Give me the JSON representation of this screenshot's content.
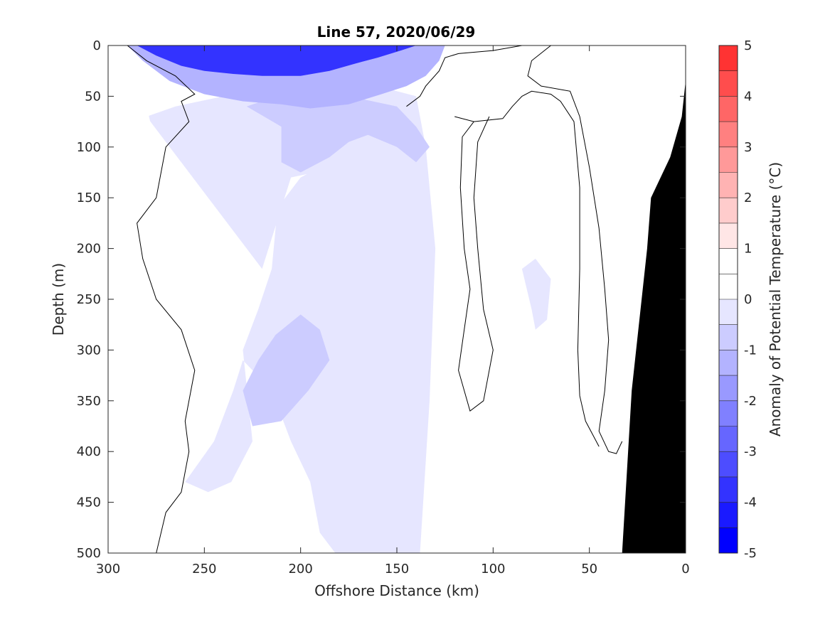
{
  "chart_data": {
    "type": "contour",
    "title": "Line 57, 2020/06/29",
    "xlabel": "Offshore Distance (km)",
    "ylabel": "Depth (m)",
    "colorbar_label": "Anomaly of Potential Temperature (°C)",
    "xlim": [
      300,
      0
    ],
    "ylim": [
      500,
      0
    ],
    "x_reversed": true,
    "y_reversed": true,
    "xticks": [
      300,
      250,
      200,
      150,
      100,
      50,
      0
    ],
    "yticks": [
      0,
      50,
      100,
      150,
      200,
      250,
      300,
      350,
      400,
      450,
      500
    ],
    "colorbar_ticks": [
      "5",
      "4",
      "3",
      "2",
      "1",
      "0",
      "-1",
      "-2",
      "-3",
      "-4",
      "-5"
    ],
    "colorbar_range": [
      -5,
      5
    ],
    "levels": [
      -5,
      -4.5,
      -4,
      -3.5,
      -3,
      -2.5,
      -2,
      -1.5,
      -1,
      -0.5,
      0,
      0.5,
      1,
      1.5,
      2,
      2.5,
      3,
      3.5,
      4,
      4.5,
      5
    ],
    "level_colors": [
      "#0000ff",
      "#1a1aff",
      "#3333ff",
      "#4d4dff",
      "#6666ff",
      "#8080ff",
      "#9999ff",
      "#b3b3ff",
      "#ccccff",
      "#e6e6ff",
      "#ffffff",
      "#ffffff",
      "#ffe6e6",
      "#ffcccc",
      "#ffb3b3",
      "#ff9999",
      "#ff8080",
      "#ff6666",
      "#ff4d4d",
      "#ff3333",
      "#ff1a1a"
    ],
    "zero_contour": "black line",
    "bathymetry_color": "#000000",
    "regions": [
      {
        "name": "surface cold core",
        "anomaly": -4,
        "polygon": [
          [
            285,
            0
          ],
          [
            275,
            10
          ],
          [
            262,
            20
          ],
          [
            250,
            25
          ],
          [
            235,
            28
          ],
          [
            220,
            30
          ],
          [
            200,
            30
          ],
          [
            185,
            25
          ],
          [
            172,
            18
          ],
          [
            160,
            12
          ],
          [
            148,
            5
          ],
          [
            140,
            0
          ]
        ]
      },
      {
        "name": "subsurface cold",
        "anomaly": -1.5,
        "polygon": [
          [
            282,
            15
          ],
          [
            268,
            35
          ],
          [
            250,
            48
          ],
          [
            230,
            55
          ],
          [
            210,
            58
          ],
          [
            195,
            62
          ],
          [
            175,
            58
          ],
          [
            158,
            48
          ],
          [
            145,
            40
          ],
          [
            135,
            30
          ],
          [
            128,
            15
          ],
          [
            125,
            0
          ],
          [
            290,
            0
          ]
        ]
      },
      {
        "name": "mid-depth cool patch",
        "anomaly": -1,
        "polygon": [
          [
            228,
            60
          ],
          [
            210,
            80
          ],
          [
            210,
            115
          ],
          [
            200,
            125
          ],
          [
            185,
            110
          ],
          [
            175,
            95
          ],
          [
            165,
            88
          ],
          [
            150,
            100
          ],
          [
            140,
            115
          ],
          [
            133,
            100
          ],
          [
            140,
            80
          ],
          [
            150,
            60
          ],
          [
            175,
            50
          ],
          [
            205,
            45
          ]
        ]
      },
      {
        "name": "deep cool tongue",
        "anomaly": -1,
        "polygon": [
          [
            200,
            265
          ],
          [
            190,
            280
          ],
          [
            185,
            310
          ],
          [
            196,
            340
          ],
          [
            210,
            370
          ],
          [
            225,
            375
          ],
          [
            230,
            340
          ],
          [
            222,
            310
          ],
          [
            213,
            285
          ]
        ]
      },
      {
        "name": "central cool column",
        "anomaly": -0.5,
        "polygon": [
          [
            280,
            70
          ],
          [
            265,
            60
          ],
          [
            240,
            50
          ],
          [
            210,
            50
          ],
          [
            185,
            45
          ],
          [
            160,
            40
          ],
          [
            140,
            50
          ],
          [
            135,
            100
          ],
          [
            130,
            200
          ],
          [
            133,
            350
          ],
          [
            138,
            500
          ],
          [
            182,
            500
          ],
          [
            190,
            480
          ],
          [
            195,
            430
          ],
          [
            205,
            390
          ],
          [
            215,
            340
          ],
          [
            230,
            310
          ],
          [
            235,
            340
          ],
          [
            245,
            390
          ],
          [
            260,
            430
          ],
          [
            248,
            440
          ],
          [
            236,
            430
          ],
          [
            225,
            390
          ],
          [
            230,
            300
          ],
          [
            222,
            260
          ],
          [
            215,
            220
          ],
          [
            212,
            160
          ],
          [
            200,
            130
          ],
          [
            185,
            115
          ],
          [
            165,
            110
          ],
          [
            180,
            120
          ],
          [
            205,
            130
          ],
          [
            220,
            220
          ]
        ]
      },
      {
        "name": "nearshore cool blob",
        "anomaly": -0.5,
        "polygon": [
          [
            85,
            220
          ],
          [
            80,
            260
          ],
          [
            78,
            280
          ],
          [
            72,
            270
          ],
          [
            70,
            230
          ],
          [
            78,
            210
          ]
        ]
      },
      {
        "name": "offshore warm",
        "anomaly": 0.5,
        "polygon": [
          [
            300,
            0
          ],
          [
            285,
            20
          ],
          [
            280,
            60
          ],
          [
            275,
            100
          ],
          [
            275,
            140
          ],
          [
            290,
            150
          ],
          [
            300,
            150
          ]
        ]
      },
      {
        "name": "deep warm patch",
        "anomaly": 0.5,
        "polygon": [
          [
            300,
            240
          ],
          [
            285,
            245
          ],
          [
            280,
            235
          ],
          [
            285,
            220
          ],
          [
            292,
            200
          ]
        ]
      },
      {
        "name": "shelf warm",
        "anomaly": 0.5,
        "polygon": [
          [
            125,
            55
          ],
          [
            115,
            40
          ],
          [
            100,
            30
          ],
          [
            85,
            28
          ],
          [
            88,
            45
          ],
          [
            100,
            55
          ],
          [
            110,
            58
          ]
        ]
      },
      {
        "name": "nearshore warm",
        "anomaly": 0.5,
        "polygon": [
          [
            45,
            15
          ],
          [
            35,
            40
          ],
          [
            30,
            60
          ],
          [
            25,
            55
          ],
          [
            18,
            25
          ],
          [
            10,
            0
          ],
          [
            50,
            0
          ]
        ]
      }
    ],
    "zero_contours": [
      [
        [
          290,
          0
        ],
        [
          280,
          15
        ],
        [
          265,
          30
        ],
        [
          255,
          48
        ],
        [
          262,
          55
        ],
        [
          258,
          75
        ],
        [
          270,
          100
        ],
        [
          275,
          150
        ],
        [
          285,
          175
        ],
        [
          282,
          210
        ],
        [
          275,
          250
        ],
        [
          262,
          280
        ],
        [
          255,
          320
        ],
        [
          260,
          370
        ],
        [
          258,
          400
        ],
        [
          262,
          440
        ],
        [
          270,
          460
        ],
        [
          275,
          500
        ]
      ],
      [
        [
          145,
          60
        ],
        [
          138,
          50
        ],
        [
          135,
          40
        ],
        [
          128,
          25
        ],
        [
          125,
          12
        ],
        [
          118,
          8
        ],
        [
          100,
          5
        ],
        [
          85,
          0
        ],
        [
          70,
          0
        ],
        [
          80,
          15
        ],
        [
          82,
          30
        ],
        [
          75,
          40
        ],
        [
          60,
          45
        ],
        [
          55,
          70
        ],
        [
          50,
          120
        ],
        [
          45,
          180
        ],
        [
          42,
          240
        ],
        [
          40,
          290
        ],
        [
          42,
          340
        ],
        [
          45,
          380
        ],
        [
          40,
          400
        ],
        [
          36,
          402
        ],
        [
          33,
          390
        ]
      ],
      [
        [
          120,
          70
        ],
        [
          110,
          75
        ],
        [
          95,
          72
        ],
        [
          90,
          60
        ],
        [
          85,
          50
        ],
        [
          80,
          45
        ],
        [
          70,
          48
        ],
        [
          65,
          55
        ],
        [
          58,
          75
        ],
        [
          55,
          140
        ],
        [
          55,
          220
        ],
        [
          56,
          300
        ],
        [
          55,
          345
        ],
        [
          52,
          370
        ],
        [
          45,
          395
        ]
      ],
      [
        [
          102,
          70
        ],
        [
          108,
          95
        ],
        [
          110,
          150
        ],
        [
          108,
          200
        ],
        [
          105,
          260
        ],
        [
          100,
          300
        ],
        [
          105,
          350
        ],
        [
          112,
          360
        ],
        [
          118,
          320
        ],
        [
          115,
          280
        ],
        [
          112,
          240
        ],
        [
          115,
          200
        ],
        [
          117,
          140
        ],
        [
          116,
          90
        ],
        [
          110,
          75
        ]
      ]
    ],
    "bathymetry": [
      [
        33,
        500
      ],
      [
        28,
        340
      ],
      [
        20,
        200
      ],
      [
        18,
        150
      ],
      [
        8,
        110
      ],
      [
        2,
        70
      ],
      [
        0,
        35
      ],
      [
        0,
        500
      ]
    ]
  }
}
